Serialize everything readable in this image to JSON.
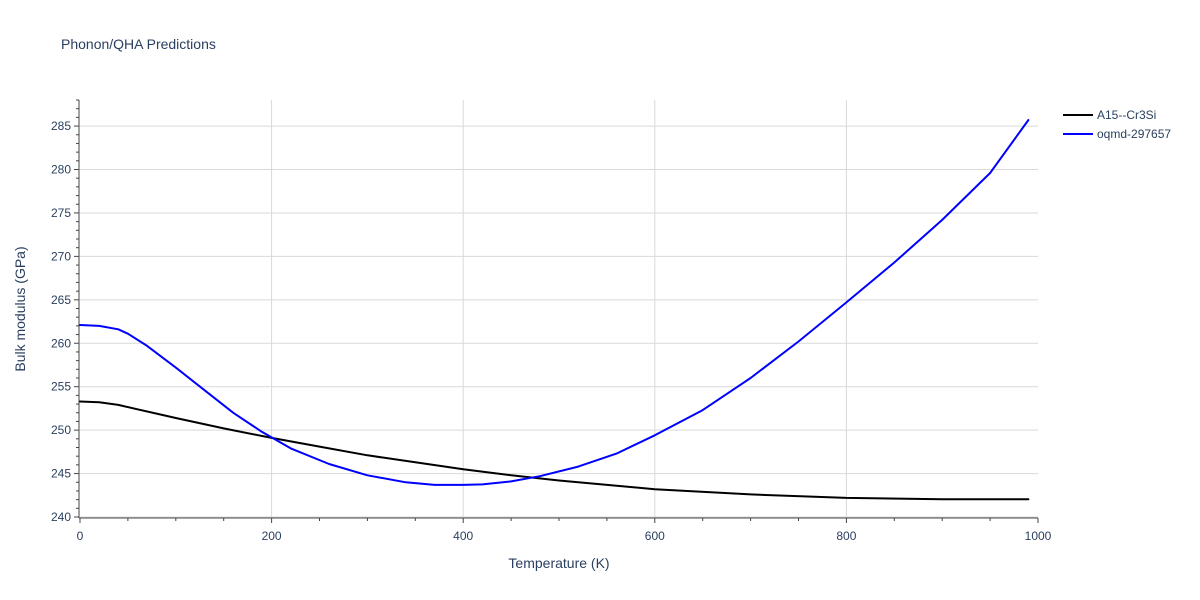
{
  "chart_data": {
    "type": "line",
    "title": "Phonon/QHA Predictions",
    "xlabel": "Temperature (K)",
    "ylabel": "Bulk modulus (GPa)",
    "xlim": [
      0,
      1000
    ],
    "ylim": [
      240,
      288
    ],
    "xticks": [
      0,
      200,
      400,
      600,
      800,
      1000
    ],
    "yticks": [
      240,
      245,
      250,
      255,
      260,
      265,
      270,
      275,
      280,
      285
    ],
    "grid": true,
    "legend_position": "top-right outside",
    "series": [
      {
        "name": "A15--Cr3Si",
        "color": "#000000",
        "x": [
          0,
          20,
          40,
          60,
          80,
          100,
          150,
          200,
          250,
          300,
          350,
          400,
          450,
          500,
          600,
          700,
          800,
          900,
          990
        ],
        "y": [
          253.3,
          253.2,
          252.9,
          252.4,
          251.9,
          251.4,
          250.2,
          249.1,
          248.1,
          247.1,
          246.3,
          245.5,
          244.8,
          244.2,
          243.2,
          242.6,
          242.2,
          242.05,
          242.05
        ]
      },
      {
        "name": "oqmd-297657",
        "color": "#0000ff",
        "x": [
          0,
          20,
          40,
          50,
          70,
          100,
          130,
          160,
          190,
          220,
          260,
          300,
          340,
          370,
          400,
          420,
          450,
          480,
          520,
          560,
          600,
          650,
          700,
          750,
          800,
          850,
          900,
          950,
          990
        ],
        "y": [
          262.1,
          262.0,
          261.6,
          261.1,
          259.7,
          257.2,
          254.6,
          252.0,
          249.8,
          247.9,
          246.1,
          244.8,
          244.0,
          243.7,
          243.7,
          243.75,
          244.1,
          244.7,
          245.8,
          247.3,
          249.4,
          252.3,
          256.0,
          260.2,
          264.7,
          269.3,
          274.2,
          279.6,
          285.7
        ]
      }
    ]
  }
}
